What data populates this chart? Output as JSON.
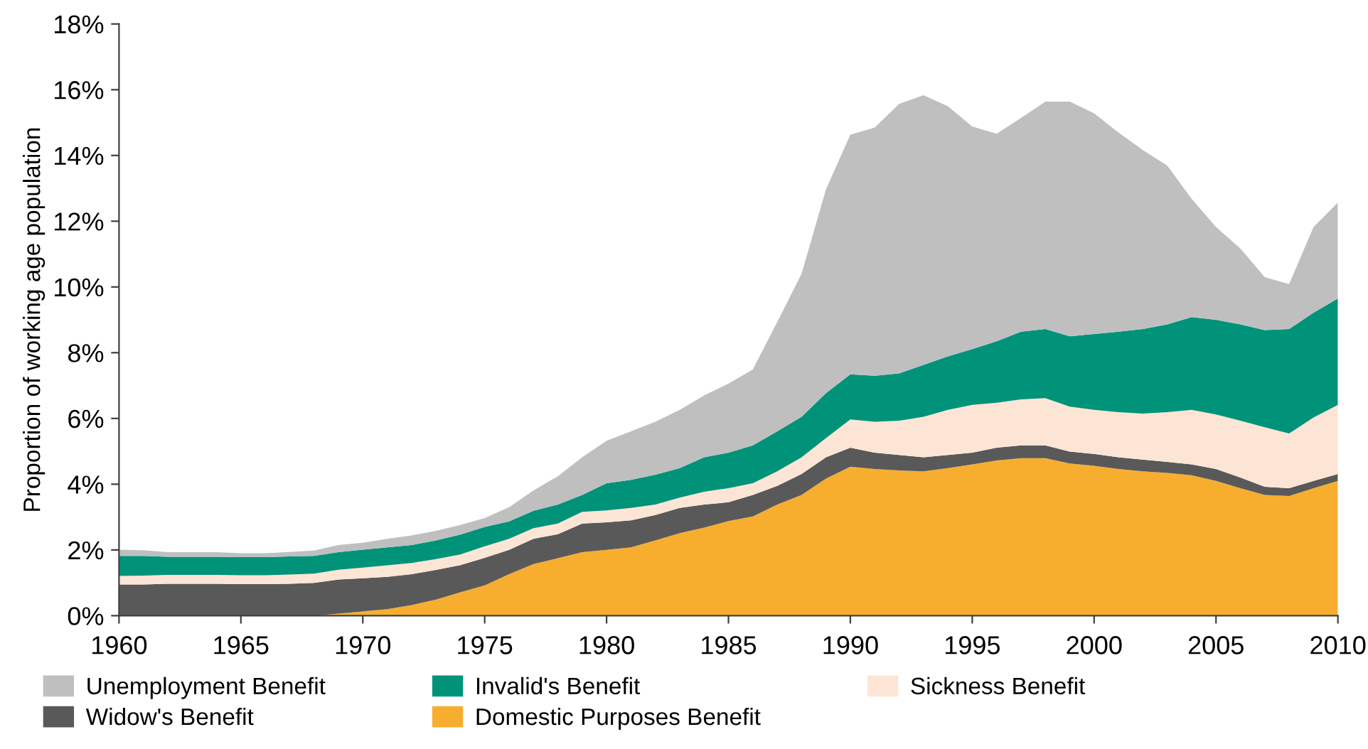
{
  "chart_data": {
    "type": "area",
    "stacked": true,
    "ylabel": "Proportion of working age population",
    "x": [
      1960,
      1961,
      1962,
      1963,
      1964,
      1965,
      1966,
      1967,
      1968,
      1969,
      1970,
      1971,
      1972,
      1973,
      1974,
      1975,
      1976,
      1977,
      1978,
      1979,
      1980,
      1981,
      1982,
      1983,
      1984,
      1985,
      1986,
      1987,
      1988,
      1989,
      1990,
      1991,
      1992,
      1993,
      1994,
      1995,
      1996,
      1997,
      1998,
      1999,
      2000,
      2001,
      2002,
      2003,
      2004,
      2005,
      2006,
      2007,
      2008,
      2009,
      2010
    ],
    "series": [
      {
        "name": "Domestic Purposes Benefit",
        "color": "#f7ae2f",
        "values": [
          0,
          0,
          0,
          0,
          0,
          0,
          0,
          0,
          0,
          0.06,
          0.13,
          0.2,
          0.32,
          0.49,
          0.71,
          0.92,
          1.26,
          1.57,
          1.75,
          1.93,
          2.0,
          2.08,
          2.29,
          2.51,
          2.68,
          2.88,
          3.02,
          3.38,
          3.67,
          4.17,
          4.53,
          4.46,
          4.42,
          4.39,
          4.49,
          4.6,
          4.72,
          4.79,
          4.79,
          4.63,
          4.56,
          4.46,
          4.39,
          4.34,
          4.27,
          4.1,
          3.88,
          3.67,
          3.64,
          3.88,
          4.1
        ]
      },
      {
        "name": "Widow's Benefit",
        "color": "#595959",
        "values": [
          0.95,
          0.95,
          0.97,
          0.97,
          0.97,
          0.96,
          0.96,
          0.97,
          1.0,
          1.04,
          1.01,
          0.98,
          0.94,
          0.9,
          0.83,
          0.84,
          0.74,
          0.77,
          0.73,
          0.87,
          0.84,
          0.82,
          0.77,
          0.77,
          0.7,
          0.57,
          0.65,
          0.57,
          0.64,
          0.65,
          0.58,
          0.5,
          0.47,
          0.43,
          0.4,
          0.36,
          0.39,
          0.39,
          0.39,
          0.36,
          0.36,
          0.36,
          0.36,
          0.34,
          0.33,
          0.36,
          0.32,
          0.25,
          0.24,
          0.22,
          0.21
        ]
      },
      {
        "name": "Sickness Benefit",
        "color": "#fde5d5",
        "values": [
          0.26,
          0.27,
          0.27,
          0.27,
          0.27,
          0.27,
          0.27,
          0.28,
          0.28,
          0.3,
          0.32,
          0.35,
          0.34,
          0.33,
          0.32,
          0.35,
          0.34,
          0.32,
          0.32,
          0.36,
          0.36,
          0.38,
          0.32,
          0.31,
          0.39,
          0.43,
          0.36,
          0.44,
          0.51,
          0.58,
          0.86,
          0.94,
          1.04,
          1.23,
          1.37,
          1.45,
          1.37,
          1.4,
          1.44,
          1.37,
          1.34,
          1.37,
          1.4,
          1.51,
          1.66,
          1.66,
          1.73,
          1.81,
          1.66,
          1.93,
          2.1
        ]
      },
      {
        "name": "Invalid's Benefit",
        "color": "#00937a",
        "values": [
          0.61,
          0.6,
          0.55,
          0.55,
          0.55,
          0.55,
          0.55,
          0.55,
          0.54,
          0.53,
          0.55,
          0.55,
          0.55,
          0.57,
          0.61,
          0.59,
          0.53,
          0.53,
          0.58,
          0.51,
          0.83,
          0.85,
          0.91,
          0.9,
          1.05,
          1.08,
          1.15,
          1.22,
          1.23,
          1.37,
          1.37,
          1.4,
          1.44,
          1.58,
          1.63,
          1.7,
          1.87,
          2.06,
          2.1,
          2.14,
          2.31,
          2.45,
          2.57,
          2.67,
          2.82,
          2.88,
          2.93,
          2.96,
          3.18,
          3.19,
          3.24
        ]
      },
      {
        "name": "Unemployment Benefit",
        "color": "#bfbfbf",
        "values": [
          0.19,
          0.17,
          0.14,
          0.14,
          0.14,
          0.12,
          0.12,
          0.14,
          0.16,
          0.22,
          0.21,
          0.26,
          0.29,
          0.29,
          0.29,
          0.27,
          0.43,
          0.62,
          0.86,
          1.15,
          1.29,
          1.48,
          1.61,
          1.77,
          1.88,
          2.1,
          2.31,
          3.32,
          4.35,
          6.2,
          7.29,
          7.55,
          8.2,
          8.2,
          7.61,
          6.77,
          6.31,
          6.5,
          6.92,
          7.14,
          6.71,
          6.06,
          5.44,
          4.83,
          3.6,
          2.82,
          2.31,
          1.61,
          1.37,
          2.6,
          2.92
        ]
      }
    ],
    "xlim": [
      1960,
      2010
    ],
    "xticks": [
      1960,
      1965,
      1970,
      1975,
      1980,
      1985,
      1990,
      1995,
      2000,
      2005,
      2010
    ],
    "ylim": [
      0,
      18
    ],
    "yticks": [
      {
        "value": 0,
        "label": "0%"
      },
      {
        "value": 2,
        "label": "2%"
      },
      {
        "value": 4,
        "label": "4%"
      },
      {
        "value": 6,
        "label": "6%"
      },
      {
        "value": 8,
        "label": "8%"
      },
      {
        "value": 10,
        "label": "10%"
      },
      {
        "value": 12,
        "label": "12%"
      },
      {
        "value": 14,
        "label": "14%"
      },
      {
        "value": 16,
        "label": "16%"
      },
      {
        "value": 18,
        "label": "18%"
      }
    ],
    "grid": false,
    "legend": "bottom"
  }
}
